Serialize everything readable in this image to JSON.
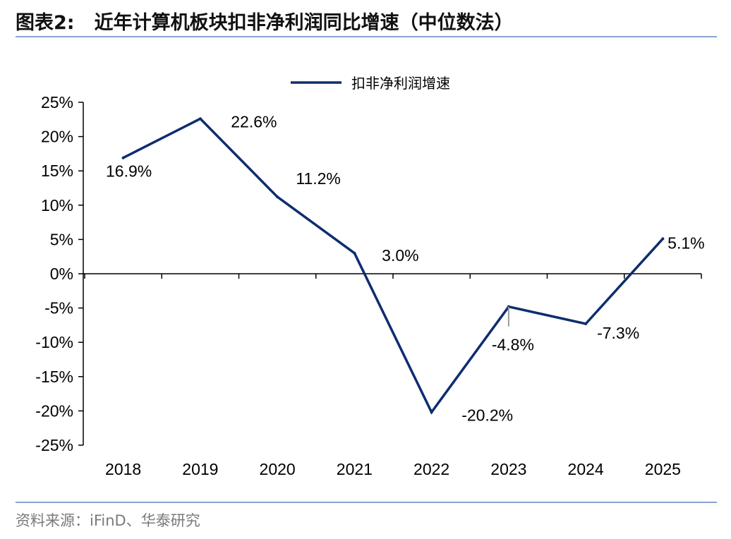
{
  "header": {
    "figure_label": "图表2:",
    "title": "近年计算机板块扣非净利润同比增速（中位数法）"
  },
  "footer": {
    "source": "资料来源：iFinD、华泰研究"
  },
  "colors": {
    "series": "#0d2d6e",
    "rule": "#8aa4cf"
  },
  "chart_data": {
    "type": "line",
    "x": [
      "2018",
      "2019",
      "2020",
      "2021",
      "2022",
      "2023",
      "2024",
      "2025"
    ],
    "series": [
      {
        "name": "扣非净利润增速",
        "values": [
          16.9,
          22.6,
          11.2,
          3.0,
          -20.2,
          -4.8,
          -7.3,
          5.1
        ],
        "labels": [
          "16.9%",
          "22.6%",
          "11.2%",
          "3.0%",
          "-20.2%",
          "-4.8%",
          "-7.3%",
          "5.1%"
        ]
      }
    ],
    "ylim": [
      -25,
      25
    ],
    "yticks": [
      25,
      20,
      15,
      10,
      5,
      0,
      -5,
      -10,
      -15,
      -20,
      -25
    ],
    "ytick_labels": [
      "25%",
      "20%",
      "15%",
      "10%",
      "5%",
      "0%",
      "-5%",
      "-10%",
      "-15%",
      "-20%",
      "-25%"
    ],
    "grid": false,
    "legend_position": "top-center"
  }
}
